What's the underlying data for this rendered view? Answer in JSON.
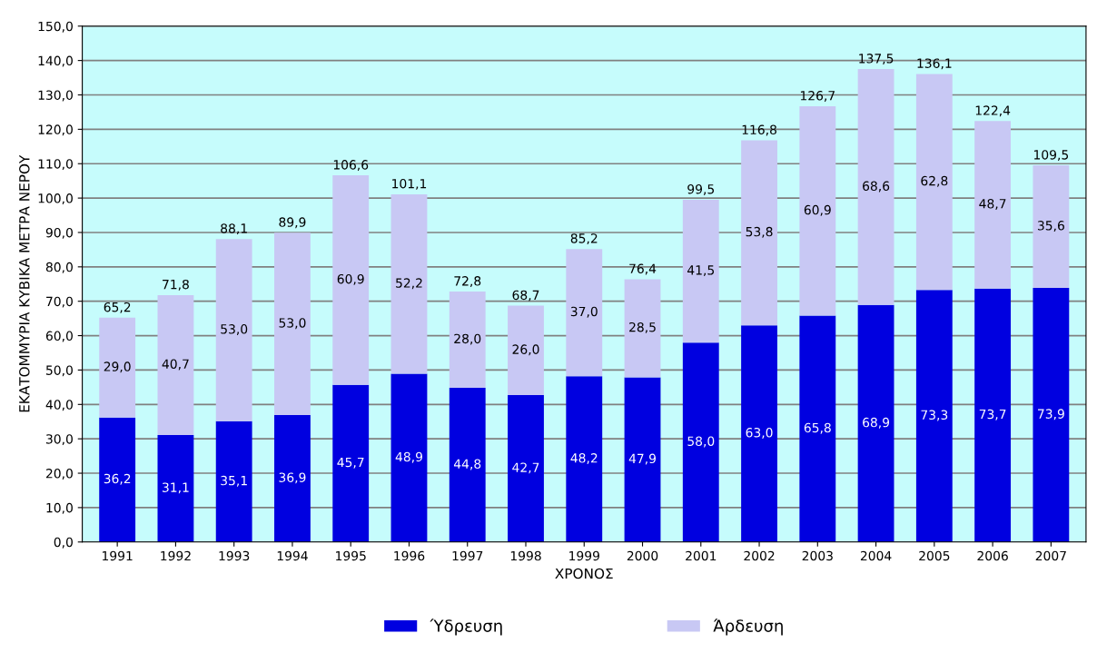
{
  "chart_data": {
    "type": "bar",
    "stacked": true,
    "xlabel": "ΧΡΟΝΟΣ",
    "ylabel": "ΕΚΑΤΟΜΜΥΡΙΑ ΚΥΒΙΚΑ ΜΕΤΡΑ ΝΕΡΟΥ",
    "categories": [
      "1991",
      "1992",
      "1993",
      "1994",
      "1995",
      "1996",
      "1997",
      "1998",
      "1999",
      "2000",
      "2001",
      "2002",
      "2003",
      "2004",
      "2005",
      "2006",
      "2007"
    ],
    "series": [
      {
        "name": "Ύδρευση",
        "color": "#0000e0",
        "values": [
          36.2,
          31.1,
          35.1,
          36.9,
          45.7,
          48.9,
          44.8,
          42.7,
          48.2,
          47.9,
          58.0,
          63.0,
          65.8,
          68.9,
          73.3,
          73.7,
          73.9
        ],
        "value_labels": [
          "36,2",
          "31,1",
          "35,1",
          "36,9",
          "45,7",
          "48,9",
          "44,8",
          "42,7",
          "48,2",
          "47,9",
          "58,0",
          "63,0",
          "65,8",
          "68,9",
          "73,3",
          "73,7",
          "73,9"
        ]
      },
      {
        "name": "Άρδευση",
        "color": "#c8c8f4",
        "values": [
          29.0,
          40.7,
          53.0,
          53.0,
          60.9,
          52.2,
          28.0,
          26.0,
          37.0,
          28.5,
          41.5,
          53.8,
          60.9,
          68.6,
          62.8,
          48.7,
          35.6
        ],
        "value_labels": [
          "29,0",
          "40,7",
          "53,0",
          "53,0",
          "60,9",
          "52,2",
          "28,0",
          "26,0",
          "37,0",
          "28,5",
          "41,5",
          "53,8",
          "60,9",
          "68,6",
          "62,8",
          "48,7",
          "35,6"
        ]
      }
    ],
    "totals": [
      "65,2",
      "71,8",
      "88,1",
      "89,9",
      "106,6",
      "101,1",
      "72,8",
      "68,7",
      "85,2",
      "76,4",
      "99,5",
      "116,8",
      "126,7",
      "137,5",
      "136,1",
      "122,4",
      "109,5"
    ],
    "ylim": [
      0,
      150
    ],
    "yticks": [
      {
        "value": 0,
        "label": "0,0"
      },
      {
        "value": 10,
        "label": "10,0"
      },
      {
        "value": 20,
        "label": "20,0"
      },
      {
        "value": 30,
        "label": "30,0"
      },
      {
        "value": 40,
        "label": "40,0"
      },
      {
        "value": 50,
        "label": "50,0"
      },
      {
        "value": 60,
        "label": "60,0"
      },
      {
        "value": 70,
        "label": "70,0"
      },
      {
        "value": 80,
        "label": "80,0"
      },
      {
        "value": 90,
        "label": "90,0"
      },
      {
        "value": 100,
        "label": "100,0"
      },
      {
        "value": 110,
        "label": "110,0"
      },
      {
        "value": 120,
        "label": "120,0"
      },
      {
        "value": 130,
        "label": "130,0"
      },
      {
        "value": 140,
        "label": "140,0"
      },
      {
        "value": 150,
        "label": "150,0"
      }
    ],
    "grid": "y",
    "legend": "bottom"
  }
}
